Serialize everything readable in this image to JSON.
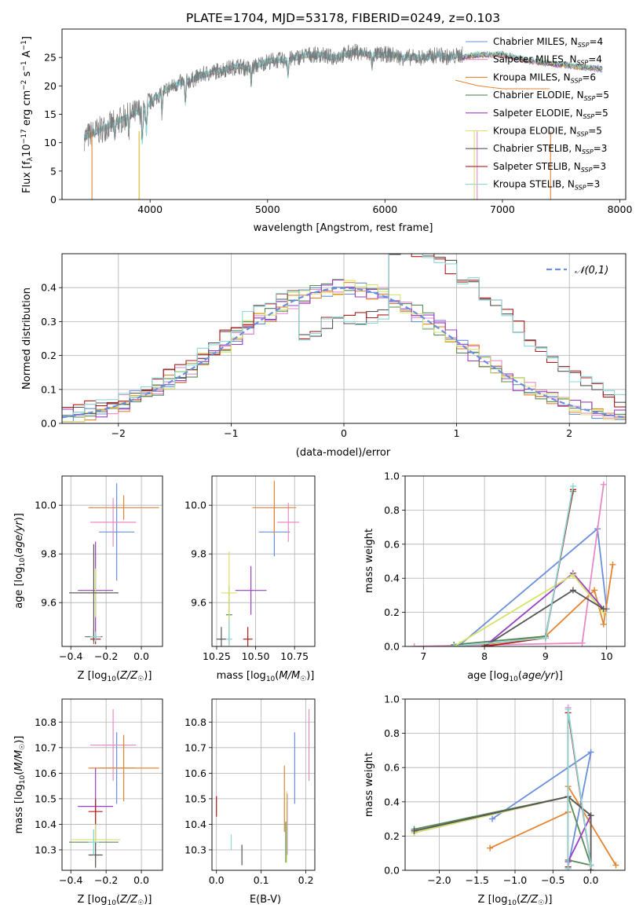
{
  "figure_title": "PLATE=1704, MJD=53178, FIBERID=0249, z=0.103",
  "series": [
    {
      "name": "Chabrier MILES",
      "nssp": "4",
      "color": "#6a8fdc"
    },
    {
      "name": "Salpeter MILES",
      "nssp": "4",
      "color": "#e88ac8"
    },
    {
      "name": "Kroupa MILES",
      "nssp": "6",
      "color": "#e5832f"
    },
    {
      "name": "Chabrier ELODIE",
      "nssp": "5",
      "color": "#5a8a5a"
    },
    {
      "name": "Salpeter ELODIE",
      "nssp": "5",
      "color": "#9a3fc4"
    },
    {
      "name": "Kroupa ELODIE",
      "nssp": "5",
      "color": "#d6e36a"
    },
    {
      "name": "Chabrier STELIB",
      "nssp": "3",
      "color": "#555555"
    },
    {
      "name": "Salpeter STELIB",
      "nssp": "3",
      "color": "#b01c1c"
    },
    {
      "name": "Kroupa STELIB",
      "nssp": "3",
      "color": "#8fd6d6"
    }
  ],
  "chart_data": [
    {
      "id": "spectrum",
      "type": "line",
      "xlabel": "wavelength [Angstrom, rest frame]",
      "ylabel": "Flux [f_λ 10^-17 erg cm^-2 s^-1 A^-1]",
      "xlim": [
        3250,
        8050
      ],
      "ylim": [
        0,
        30
      ],
      "xticks": [
        4000,
        5000,
        6000,
        7000,
        8000
      ],
      "yticks": [
        0,
        5,
        10,
        15,
        20,
        25
      ],
      "legend": "top-right",
      "grid": false,
      "data_x": [
        3450,
        3550,
        3650,
        3750,
        3850,
        3950,
        4050,
        4150,
        4250,
        4350,
        4450,
        4550,
        4650,
        4750,
        4850,
        4950,
        5050,
        5150,
        5250,
        5350,
        5450,
        5550,
        5650,
        5750,
        5850,
        5950,
        6050,
        6150,
        6250,
        6350,
        6450,
        6550,
        6650
      ],
      "data_y": [
        11,
        12,
        13,
        14,
        15,
        16,
        18,
        19.5,
        20.5,
        21,
        22,
        22.5,
        23,
        23.5,
        23,
        24,
        24.5,
        24.5,
        25,
        25.5,
        25.5,
        25,
        25.5,
        26,
        25.5,
        25.5,
        25.5,
        25,
        25,
        25,
        25.5,
        25,
        25.5
      ],
      "model_tail_x": [
        6650,
        6800,
        7000,
        7200,
        7400,
        7600,
        7850
      ],
      "model_tail_y": [
        25,
        25.5,
        25.5,
        24.5,
        24,
        23.5,
        23
      ],
      "salpeter_stelib_tail_x": [
        6600,
        6800,
        7000,
        7200,
        7400
      ],
      "salpeter_stelib_tail_y": [
        21,
        20,
        19.5,
        19.5,
        19.5
      ]
    },
    {
      "id": "residuals",
      "type": "step",
      "xlabel": "(data-model)/error",
      "ylabel": "Normed distribution",
      "xlim": [
        -2.5,
        2.5
      ],
      "ylim": [
        0,
        0.5
      ],
      "xticks": [
        -2,
        -1,
        0,
        1,
        2
      ],
      "yticks": [
        0.0,
        0.1,
        0.2,
        0.3,
        0.4
      ],
      "grid": true,
      "legend": "top-right",
      "gaussian_label": "𝒩(0,1)",
      "groups": {
        "narrow": [
          0,
          1,
          2,
          3,
          4,
          5
        ],
        "wide": [
          6,
          7,
          8
        ]
      },
      "bin_width": 0.1
    },
    {
      "id": "age-vs-Z",
      "type": "errorbar",
      "xlabel": "Z [log10(Z/Z☉)]",
      "ylabel": "age [log10(age/yr)]",
      "xlim": [
        -0.45,
        0.12
      ],
      "ylim": [
        9.42,
        10.12
      ],
      "xticks": [
        -0.4,
        -0.2,
        0.0
      ],
      "yticks": [
        9.6,
        9.8,
        10.0
      ],
      "grid": true,
      "points": [
        {
          "x": -0.14,
          "xerr": 0.1,
          "y": 9.89,
          "yerr": 0.2
        },
        {
          "x": -0.16,
          "xerr": 0.13,
          "y": 9.93,
          "yerr": 0.1
        },
        {
          "x": -0.1,
          "xerr": 0.2,
          "y": 9.99,
          "yerr": 0.05
        },
        {
          "x": -0.27,
          "xerr": 0.05,
          "y": 9.46,
          "yerr": 0.03
        },
        {
          "x": -0.26,
          "xerr": 0.1,
          "y": 9.65,
          "yerr": 0.2
        },
        {
          "x": -0.26,
          "xerr": 0.13,
          "y": 9.64,
          "yerr": 0.1
        },
        {
          "x": -0.27,
          "xerr": 0.14,
          "y": 9.64,
          "yerr": 0.2
        },
        {
          "x": -0.26,
          "xerr": 0.03,
          "y": 9.45,
          "yerr": 0.02
        },
        {
          "x": -0.26,
          "xerr": 0.03,
          "y": 9.46,
          "yerr": 0.02
        }
      ]
    },
    {
      "id": "age-vs-mass",
      "type": "errorbar",
      "xlabel": "mass [log10(M/M☉)]",
      "ylabel": "",
      "xlim": [
        10.22,
        10.88
      ],
      "ylim": [
        9.42,
        10.12
      ],
      "xticks": [
        10.25,
        10.5,
        10.75
      ],
      "yticks": [
        9.6,
        9.8,
        10.0
      ],
      "grid": true,
      "points": [
        {
          "x": 10.62,
          "xerr": 0.1,
          "y": 9.89,
          "yerr": 0.1
        },
        {
          "x": 10.71,
          "xerr": 0.07,
          "y": 9.93,
          "yerr": 0.08
        },
        {
          "x": 10.62,
          "xerr": 0.14,
          "y": 9.99,
          "yerr": 0.11
        },
        {
          "x": 10.33,
          "xerr": 0.02,
          "y": 9.55,
          "yerr": 0.12
        },
        {
          "x": 10.47,
          "xerr": 0.1,
          "y": 9.65,
          "yerr": 0.1
        },
        {
          "x": 10.33,
          "xerr": 0.05,
          "y": 9.64,
          "yerr": 0.17
        },
        {
          "x": 10.28,
          "xerr": 0.03,
          "y": 9.45,
          "yerr": 0.05
        },
        {
          "x": 10.45,
          "xerr": 0.03,
          "y": 9.45,
          "yerr": 0.05
        },
        {
          "x": 10.33,
          "xerr": 0.02,
          "y": 9.45,
          "yerr": 0.08
        }
      ]
    },
    {
      "id": "weight-vs-age",
      "type": "line",
      "xlabel": "age [log10(age/yr)]",
      "ylabel": "mass weight",
      "xlim": [
        6.7,
        10.3
      ],
      "ylim": [
        0,
        1
      ],
      "xticks": [
        7,
        8,
        9,
        10
      ],
      "yticks": [
        0.0,
        0.2,
        0.4,
        0.6,
        0.8,
        1.0
      ],
      "grid": true,
      "lines": [
        {
          "x": [
            7.6,
            9.85,
            10.0
          ],
          "y": [
            0.01,
            0.69,
            0.22
          ]
        },
        {
          "x": [
            6.85,
            9.6,
            9.95
          ],
          "y": [
            0.0,
            0.02,
            0.95
          ]
        },
        {
          "x": [
            8.0,
            9.0,
            9.8,
            9.95,
            10.1
          ],
          "y": [
            0.01,
            0.06,
            0.33,
            0.13,
            0.48
          ]
        },
        {
          "x": [
            7.5,
            9.0,
            9.45
          ],
          "y": [
            0.01,
            0.06,
            0.91
          ]
        },
        {
          "x": [
            8.0,
            9.45,
            9.95
          ],
          "y": [
            0.0,
            0.43,
            0.22
          ]
        },
        {
          "x": [
            7.5,
            9.45,
            9.95
          ],
          "y": [
            0.0,
            0.42,
            0.2
          ]
        },
        {
          "x": [
            8.0,
            9.45,
            9.95
          ],
          "y": [
            0.0,
            0.33,
            0.22
          ]
        },
        {
          "x": [
            8.0,
            9.0,
            9.45
          ],
          "y": [
            0.0,
            0.05,
            0.92
          ]
        },
        {
          "x": [
            7.5,
            9.0,
            9.45
          ],
          "y": [
            0.0,
            0.05,
            0.94
          ]
        }
      ]
    },
    {
      "id": "mass-vs-Z",
      "type": "errorbar",
      "xlabel": "Z [log10(Z/Z☉)]",
      "ylabel": "mass [log10(M/M☉)]",
      "xlim": [
        -0.45,
        0.12
      ],
      "ylim": [
        10.22,
        10.89
      ],
      "xticks": [
        -0.4,
        -0.2,
        0.0
      ],
      "yticks": [
        10.3,
        10.4,
        10.5,
        10.6,
        10.7,
        10.8
      ],
      "grid": true,
      "points": [
        {
          "x": -0.14,
          "xerr": 0.1,
          "y": 10.62,
          "yerr": 0.14
        },
        {
          "x": -0.16,
          "xerr": 0.13,
          "y": 10.71,
          "yerr": 0.14
        },
        {
          "x": -0.1,
          "xerr": 0.2,
          "y": 10.62,
          "yerr": 0.13
        },
        {
          "x": -0.27,
          "xerr": 0.14,
          "y": 10.33,
          "yerr": 0.05
        },
        {
          "x": -0.26,
          "xerr": 0.1,
          "y": 10.47,
          "yerr": 0.15
        },
        {
          "x": -0.26,
          "xerr": 0.14,
          "y": 10.34,
          "yerr": 0.1
        },
        {
          "x": -0.26,
          "xerr": 0.04,
          "y": 10.28,
          "yerr": 0.05
        },
        {
          "x": -0.26,
          "xerr": 0.04,
          "y": 10.45,
          "yerr": 0.05
        },
        {
          "x": -0.27,
          "xerr": 0.03,
          "y": 10.33,
          "yerr": 0.05
        }
      ]
    },
    {
      "id": "mass-vs-ebv",
      "type": "errorbar",
      "xlabel": "E(B-V)",
      "ylabel": "",
      "xlim": [
        -0.01,
        0.22
      ],
      "ylim": [
        10.22,
        10.89
      ],
      "xticks": [
        0.0,
        0.1,
        0.2
      ],
      "yticks": [
        10.3,
        10.4,
        10.5,
        10.6,
        10.7,
        10.8
      ],
      "grid": true,
      "points": [
        {
          "x": 0.175,
          "xerr": 0,
          "y": 10.62,
          "yerr": 0.14
        },
        {
          "x": 0.207,
          "xerr": 0,
          "y": 10.71,
          "yerr": 0.14
        },
        {
          "x": 0.152,
          "xerr": 0,
          "y": 10.5,
          "yerr": 0.13
        },
        {
          "x": 0.155,
          "xerr": 0,
          "y": 10.33,
          "yerr": 0.08
        },
        {
          "x": 0.158,
          "xerr": 0,
          "y": 10.4,
          "yerr": 0.12
        },
        {
          "x": 0.157,
          "xerr": 0,
          "y": 10.39,
          "yerr": 0.14
        },
        {
          "x": 0.057,
          "xerr": 0,
          "y": 10.28,
          "yerr": 0.04
        },
        {
          "x": 0.0,
          "xerr": 0,
          "y": 10.47,
          "yerr": 0.04
        },
        {
          "x": 0.033,
          "xerr": 0,
          "y": 10.33,
          "yerr": 0.03
        }
      ]
    },
    {
      "id": "weight-vs-Z",
      "type": "line",
      "xlabel": "Z [log10(Z/Z☉)]",
      "ylabel": "mass weight",
      "xlim": [
        -2.45,
        0.45
      ],
      "ylim": [
        0,
        1
      ],
      "xticks": [
        -2.0,
        -1.5,
        -1.0,
        -0.5,
        0.0
      ],
      "yticks": [
        0.0,
        0.2,
        0.4,
        0.6,
        0.8,
        1.0
      ],
      "grid": true,
      "lines": [
        {
          "x": [
            -1.3,
            0.0,
            -0.3
          ],
          "y": [
            0.3,
            0.69,
            0.02
          ]
        },
        {
          "x": [
            -0.3,
            -0.3
          ],
          "y": [
            0.01,
            0.95
          ]
        },
        {
          "x": [
            -1.33,
            -0.3,
            -0.3,
            0.33
          ],
          "y": [
            0.13,
            0.34,
            0.49,
            0.03
          ]
        },
        {
          "x": [
            -2.33,
            -0.3,
            0.0,
            -0.3
          ],
          "y": [
            0.24,
            0.43,
            0.03,
            0.06
          ]
        },
        {
          "x": [
            -2.33,
            -0.3,
            0.0,
            -0.3
          ],
          "y": [
            0.22,
            0.43,
            0.32,
            0.05
          ]
        },
        {
          "x": [
            -2.33,
            -0.3,
            0.0,
            0.0
          ],
          "y": [
            0.22,
            0.43,
            0.32,
            0.0
          ]
        },
        {
          "x": [
            -2.33,
            -0.3,
            0.0,
            0.0
          ],
          "y": [
            0.23,
            0.43,
            0.32,
            0.0
          ]
        },
        {
          "x": [
            -0.3,
            -0.3,
            0.0
          ],
          "y": [
            0.02,
            0.92,
            0.03
          ]
        },
        {
          "x": [
            -0.3,
            -0.3,
            0.0
          ],
          "y": [
            0.01,
            0.94,
            0.03
          ]
        }
      ]
    }
  ]
}
